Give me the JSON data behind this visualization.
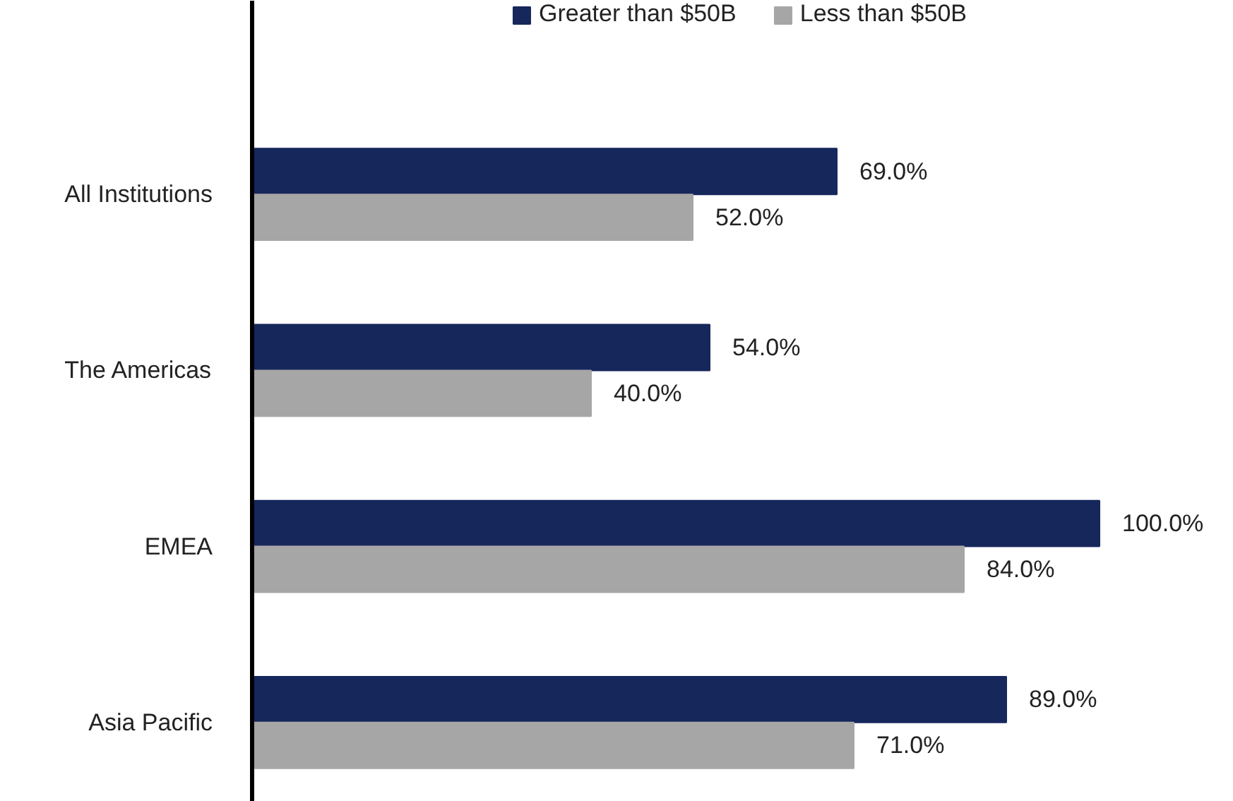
{
  "chart_data": {
    "type": "bar",
    "orientation": "horizontal",
    "categories": [
      "All Institutions",
      "The Americas",
      "EMEA",
      "Asia Pacific"
    ],
    "series": [
      {
        "name": "Greater than $50B",
        "color": "#16275c",
        "values": [
          69,
          54,
          100,
          89
        ],
        "value_labels": [
          "69.0%",
          "54.0%",
          "100.0%",
          "89.0%"
        ]
      },
      {
        "name": "Less than $50B",
        "color": "#a6a6a6",
        "values": [
          52,
          40,
          84,
          71
        ],
        "value_labels": [
          "52.0%",
          "40.0%",
          "84.0%",
          "71.0%"
        ]
      }
    ],
    "legend": "top",
    "grid": false
  }
}
